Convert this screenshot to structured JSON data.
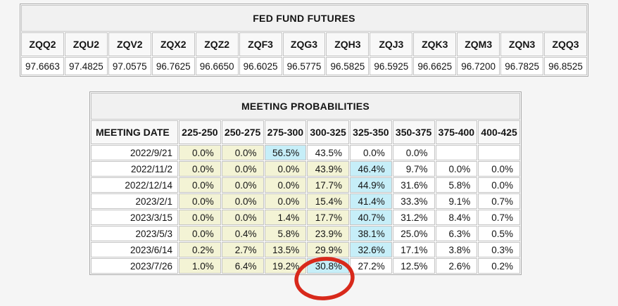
{
  "futures": {
    "title": "FED FUND FUTURES",
    "symbols": [
      "ZQQ2",
      "ZQU2",
      "ZQV2",
      "ZQX2",
      "ZQZ2",
      "ZQF3",
      "ZQG3",
      "ZQH3",
      "ZQJ3",
      "ZQK3",
      "ZQM3",
      "ZQN3",
      "ZQQ3"
    ],
    "prices": [
      "97.6663",
      "97.4825",
      "97.0575",
      "96.7625",
      "96.6650",
      "96.6025",
      "96.5775",
      "96.5825",
      "96.5925",
      "96.6625",
      "96.7200",
      "96.7825",
      "96.8525"
    ]
  },
  "probabilities": {
    "title": "MEETING PROBABILITIES",
    "date_header": "MEETING DATE",
    "range_headers": [
      "225-250",
      "250-275",
      "275-300",
      "300-325",
      "325-350",
      "350-375",
      "375-400",
      "400-425"
    ],
    "rows": [
      {
        "date": "2022/9/21",
        "values": [
          "0.0%",
          "0.0%",
          "56.5%",
          "43.5%",
          "0.0%",
          "0.0%",
          "",
          ""
        ],
        "highlights": [
          "y",
          "y",
          "c",
          "",
          "",
          "",
          "",
          ""
        ]
      },
      {
        "date": "2022/11/2",
        "values": [
          "0.0%",
          "0.0%",
          "0.0%",
          "43.9%",
          "46.4%",
          "9.7%",
          "0.0%",
          "0.0%"
        ],
        "highlights": [
          "y",
          "y",
          "y",
          "y",
          "c",
          "",
          "",
          ""
        ]
      },
      {
        "date": "2022/12/14",
        "values": [
          "0.0%",
          "0.0%",
          "0.0%",
          "17.7%",
          "44.9%",
          "31.6%",
          "5.8%",
          "0.0%"
        ],
        "highlights": [
          "y",
          "y",
          "y",
          "y",
          "c",
          "",
          "",
          ""
        ]
      },
      {
        "date": "2023/2/1",
        "values": [
          "0.0%",
          "0.0%",
          "0.0%",
          "15.4%",
          "41.4%",
          "33.3%",
          "9.1%",
          "0.7%"
        ],
        "highlights": [
          "y",
          "y",
          "y",
          "y",
          "c",
          "",
          "",
          ""
        ]
      },
      {
        "date": "2023/3/15",
        "values": [
          "0.0%",
          "0.0%",
          "1.4%",
          "17.7%",
          "40.7%",
          "31.2%",
          "8.4%",
          "0.7%"
        ],
        "highlights": [
          "y",
          "y",
          "y",
          "y",
          "c",
          "",
          "",
          ""
        ]
      },
      {
        "date": "2023/5/3",
        "values": [
          "0.0%",
          "0.4%",
          "5.8%",
          "23.9%",
          "38.1%",
          "25.0%",
          "6.3%",
          "0.5%"
        ],
        "highlights": [
          "y",
          "y",
          "y",
          "y",
          "c",
          "",
          "",
          ""
        ]
      },
      {
        "date": "2023/6/14",
        "values": [
          "0.2%",
          "2.7%",
          "13.5%",
          "29.9%",
          "32.6%",
          "17.1%",
          "3.8%",
          "0.3%"
        ],
        "highlights": [
          "y",
          "y",
          "y",
          "y",
          "c",
          "",
          "",
          ""
        ]
      },
      {
        "date": "2023/7/26",
        "values": [
          "1.0%",
          "6.4%",
          "19.2%",
          "30.8%",
          "27.2%",
          "12.5%",
          "2.6%",
          "0.2%"
        ],
        "highlights": [
          "y",
          "y",
          "y",
          "c",
          "",
          "",
          "",
          ""
        ]
      }
    ]
  },
  "annotation": {
    "shape": "ellipse",
    "circled_value": "30.8%",
    "circled_row": "2023/7/26",
    "circled_column": "300-325"
  },
  "colors": {
    "highlight_yellow": "#f3f3d5",
    "highlight_cyan": "#c6eef8",
    "annotation_red": "#d8291b"
  }
}
